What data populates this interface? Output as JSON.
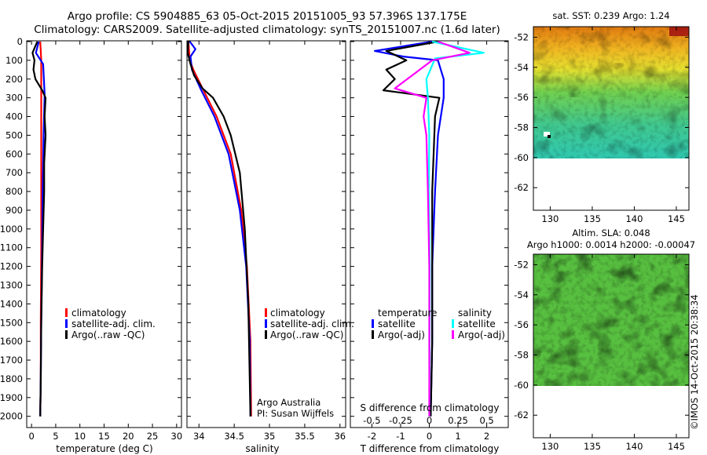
{
  "header": {
    "line1": "Argo profile: CS 5904885_63 05-Oct-2015 20151005_93 57.396S 137.175E",
    "line2": "Climatology: CARS2009. Satellite-adjusted climatology: synTS_20151007.nc (1.6d later)"
  },
  "depth_ticks": [
    0,
    100,
    200,
    300,
    400,
    500,
    600,
    700,
    800,
    900,
    1000,
    1100,
    1200,
    1300,
    1400,
    1500,
    1600,
    1700,
    1800,
    1900,
    2000
  ],
  "colors": {
    "climatology": "#ff0000",
    "satellite": "#0000ff",
    "argo": "#000000",
    "salinity_satellite": "#00ffff",
    "salinity_argo": "#ff00ff"
  },
  "panels": {
    "temperature": {
      "xlabel": "temperature (deg C)",
      "xticks": [
        "0",
        "5",
        "10",
        "15",
        "20",
        "25",
        "30"
      ],
      "legend": [
        "climatology",
        "satellite-adj. clim.",
        "Argo(..raw -QC)"
      ]
    },
    "salinity": {
      "xlabel": "salinity",
      "xticks": [
        "34",
        "34.5",
        "35",
        "35.5",
        "36"
      ],
      "legend": [
        "climatology",
        "satellite-adj. clim.",
        "Argo(..raw -QC)"
      ],
      "annotation": [
        "Argo Australia",
        "PI: Susan Wijffels"
      ]
    },
    "difference": {
      "xlabel": "T difference from climatology",
      "top_label": "S difference from climatology",
      "xticks_T": [
        "-2",
        "-1",
        "0",
        "1",
        "2"
      ],
      "xticks_S": [
        "-0.5",
        "-0.25",
        "0",
        "0.25",
        "0.5"
      ],
      "legend_titles": [
        "temperature",
        "salinity"
      ],
      "legend_T": [
        "satellite",
        "Argo(-adj)"
      ],
      "legend_S": [
        "satellite",
        "Argo(-adj)"
      ]
    },
    "sst_map": {
      "title": "sat. SST: 0.239 Argo: 1.24",
      "yticks": [
        "-52",
        "-54",
        "-56",
        "-58",
        "-60",
        "-62"
      ],
      "xticks": [
        "130",
        "135",
        "140",
        "145"
      ]
    },
    "sla_map": {
      "title1": "Altim. SLA: 0.048",
      "title2": "Argo h1000: 0.0014 h2000: -0.00047",
      "yticks": [
        "-52",
        "-54",
        "-56",
        "-58",
        "-60",
        "-62"
      ],
      "xticks": [
        "130",
        "135",
        "140",
        "145"
      ]
    }
  },
  "footer_credit": "©IMOS 14-Oct-2015 20:38:34",
  "chart_data": [
    {
      "type": "line",
      "title": "",
      "xlabel": "temperature (deg C)",
      "ylabel": "",
      "xlim": [
        -1,
        31
      ],
      "ylim": [
        2060,
        0
      ],
      "series": [
        {
          "name": "climatology",
          "x": [
            1.8,
            1.9,
            2.0,
            2.0,
            2.0,
            2.0,
            2.0,
            1.9,
            1.9,
            1.8
          ],
          "y": [
            0,
            50,
            100,
            300,
            500,
            800,
            1100,
            1500,
            1800,
            2000
          ]
        },
        {
          "name": "satellite-adj. clim.",
          "x": [
            1.5,
            0.9,
            2.4,
            2.7,
            2.5,
            2.3,
            2.2,
            2.0,
            1.9,
            1.8
          ],
          "y": [
            0,
            60,
            120,
            280,
            500,
            800,
            1100,
            1500,
            1800,
            2000
          ]
        },
        {
          "name": "Argo(..raw -QC)",
          "x": [
            1.2,
            0.2,
            0.6,
            0.4,
            0.8,
            2.2,
            2.9,
            2.7,
            2.9,
            2.6,
            2.6,
            2.4,
            2.2,
            2.0,
            1.9,
            1.8
          ],
          "y": [
            0,
            60,
            100,
            150,
            200,
            260,
            300,
            400,
            500,
            650,
            800,
            1000,
            1200,
            1500,
            1800,
            2000
          ]
        }
      ]
    },
    {
      "type": "line",
      "title": "",
      "xlabel": "salinity",
      "ylabel": "",
      "xlim": [
        33.83,
        36.08
      ],
      "ylim": [
        2060,
        0
      ],
      "series": [
        {
          "name": "climatology",
          "x": [
            33.85,
            33.87,
            33.92,
            34.05,
            34.25,
            34.45,
            34.6,
            34.68,
            34.73,
            34.74
          ],
          "y": [
            0,
            100,
            150,
            250,
            400,
            600,
            900,
            1200,
            1600,
            2000
          ]
        },
        {
          "name": "satellite-adj. clim.",
          "x": [
            33.87,
            33.95,
            33.88,
            33.9,
            34.02,
            34.22,
            34.42,
            34.58,
            34.67,
            34.72,
            34.73
          ],
          "y": [
            0,
            40,
            80,
            150,
            250,
            400,
            600,
            900,
            1200,
            1600,
            2000
          ]
        },
        {
          "name": "Argo(..raw -QC)",
          "x": [
            33.85,
            33.84,
            33.88,
            33.93,
            34.05,
            34.2,
            34.35,
            34.45,
            34.58,
            34.65,
            34.7,
            34.72,
            34.73
          ],
          "y": [
            0,
            60,
            120,
            180,
            250,
            300,
            400,
            500,
            700,
            1000,
            1400,
            1800,
            2000
          ]
        }
      ]
    },
    {
      "type": "line",
      "title": "",
      "xlabel": "T difference from climatology",
      "ylabel": "",
      "xlim": [
        -2.75,
        2.75
      ],
      "ylim": [
        2060,
        0
      ],
      "series": [
        {
          "name": "temperature satellite",
          "x": [
            0.1,
            -1.9,
            -0.9,
            0.3,
            0.5,
            0.5,
            0.3,
            0.2,
            0.1,
            0.1,
            0.05
          ],
          "y": [
            0,
            50,
            80,
            100,
            200,
            300,
            500,
            800,
            1200,
            1600,
            2000
          ]
        },
        {
          "name": "temperature Argo(-adj)",
          "x": [
            0.3,
            -1.5,
            -0.8,
            -1.5,
            -1.2,
            -1.6,
            0.35,
            0.2,
            0.1,
            0.1,
            0.05
          ],
          "y": [
            0,
            50,
            100,
            150,
            200,
            260,
            300,
            400,
            800,
            1600,
            2000
          ]
        },
        {
          "name": "salinity satellite",
          "x": [
            0.1,
            1.9,
            0.2,
            -0.1,
            -0.05,
            0.0,
            -0.02,
            0.02,
            0.01,
            0.0
          ],
          "y": [
            0,
            60,
            90,
            200,
            300,
            500,
            800,
            1200,
            1600,
            2000
          ]
        },
        {
          "name": "salinity Argo(-adj)",
          "x": [
            0.3,
            1.4,
            0.1,
            -1.2,
            -0.1,
            -0.2,
            -0.1,
            -0.05,
            0.0,
            0.0
          ],
          "y": [
            0,
            60,
            100,
            250,
            300,
            400,
            500,
            800,
            1200,
            2000
          ]
        }
      ]
    },
    {
      "type": "heatmap",
      "title": "sat. SST: 0.239 Argo: 1.24",
      "xlabel": "",
      "ylabel": "",
      "xlim": [
        128,
        146.5
      ],
      "ylim": [
        -63.5,
        -51.3
      ]
    },
    {
      "type": "heatmap",
      "title": "Altim. SLA: 0.048",
      "xlabel": "",
      "ylabel": "",
      "xlim": [
        128,
        146.5
      ],
      "ylim": [
        -63.5,
        -51.3
      ]
    }
  ]
}
